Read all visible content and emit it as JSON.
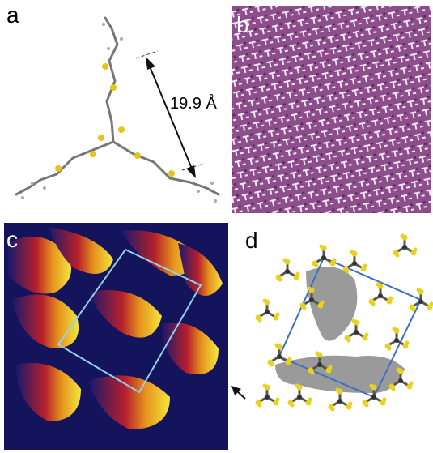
{
  "panels": [
    {
      "label": "a",
      "annotation": "19.9 Å"
    },
    {
      "label": "b"
    },
    {
      "label": "c"
    },
    {
      "label": "d"
    }
  ]
}
